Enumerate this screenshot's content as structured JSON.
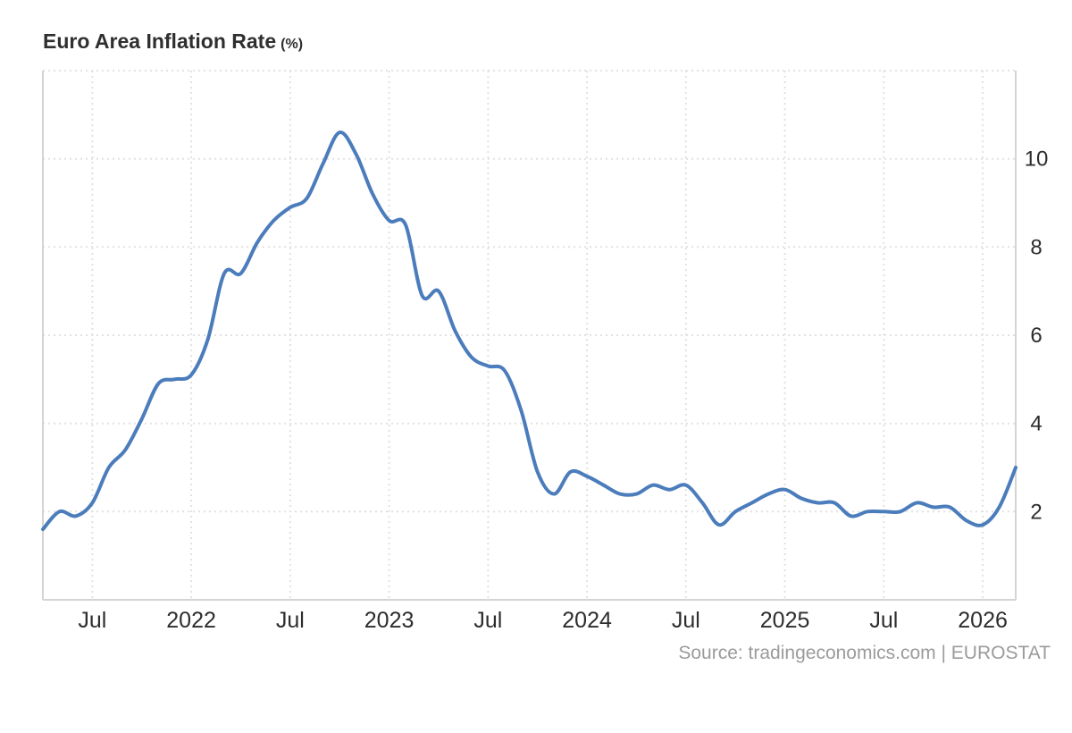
{
  "header": {
    "title": "Euro Area Inflation Rate",
    "unit": "(%)"
  },
  "footer": {
    "source": "Source: tradingeconomics.com | EUROSTAT"
  },
  "colors": {
    "line": "#4b7cbb",
    "grid": "#e1e1e1",
    "axis_border": "#d4d4d4",
    "tick_label": "#2d2d2d",
    "title": "#2f2f2f",
    "source": "#9b9b9b",
    "background": "#ffffff"
  },
  "chart_data": {
    "type": "line",
    "title": "Euro Area Inflation Rate (%)",
    "series_name": "Euro Area Inflation Rate",
    "unit": "percent",
    "smoothing": "spline",
    "grid_style": "dotted",
    "legend": "none",
    "ylim": [
      0,
      12
    ],
    "y_ticks": [
      2,
      4,
      6,
      8,
      10
    ],
    "y_gridlines": [
      2,
      4,
      6,
      8,
      10,
      12
    ],
    "x_ticks": [
      {
        "index": 3,
        "label": "Jul"
      },
      {
        "index": 9,
        "label": "2022"
      },
      {
        "index": 15,
        "label": "Jul"
      },
      {
        "index": 21,
        "label": "2023"
      },
      {
        "index": 27,
        "label": "Jul"
      },
      {
        "index": 33,
        "label": "2024"
      },
      {
        "index": 39,
        "label": "Jul"
      },
      {
        "index": 45,
        "label": "2025"
      },
      {
        "index": 51,
        "label": "Jul"
      },
      {
        "index": 57,
        "label": "2026"
      }
    ],
    "x": [
      "2021-04",
      "2021-05",
      "2021-06",
      "2021-07",
      "2021-08",
      "2021-09",
      "2021-10",
      "2021-11",
      "2021-12",
      "2022-01",
      "2022-02",
      "2022-03",
      "2022-04",
      "2022-05",
      "2022-06",
      "2022-07",
      "2022-08",
      "2022-09",
      "2022-10",
      "2022-11",
      "2022-12",
      "2023-01",
      "2023-02",
      "2023-03",
      "2023-04",
      "2023-05",
      "2023-06",
      "2023-07",
      "2023-08",
      "2023-09",
      "2023-10",
      "2023-11",
      "2023-12",
      "2024-01",
      "2024-02",
      "2024-03",
      "2024-04",
      "2024-05",
      "2024-06",
      "2024-07",
      "2024-08",
      "2024-09",
      "2024-10",
      "2024-11",
      "2024-12",
      "2025-01",
      "2025-02",
      "2025-03",
      "2025-04",
      "2025-05",
      "2025-06",
      "2025-07",
      "2025-08",
      "2025-09",
      "2025-10",
      "2025-11",
      "2025-12",
      "2026-01",
      "2026-02",
      "2026-03"
    ],
    "values": [
      1.6,
      2.0,
      1.9,
      2.2,
      3.0,
      3.4,
      4.1,
      4.9,
      5.0,
      5.1,
      5.9,
      7.4,
      7.4,
      8.1,
      8.6,
      8.9,
      9.1,
      9.9,
      10.6,
      10.1,
      9.2,
      8.6,
      8.5,
      6.9,
      7.0,
      6.1,
      5.5,
      5.3,
      5.2,
      4.3,
      2.9,
      2.4,
      2.9,
      2.8,
      2.6,
      2.4,
      2.4,
      2.6,
      2.5,
      2.6,
      2.2,
      1.7,
      2.0,
      2.2,
      2.4,
      2.5,
      2.3,
      2.2,
      2.2,
      1.9,
      2.0,
      2.0,
      2.0,
      2.2,
      2.1,
      2.1,
      1.8,
      1.7,
      2.1,
      3.0
    ],
    "source": "Source: tradingeconomics.com | EUROSTAT"
  }
}
